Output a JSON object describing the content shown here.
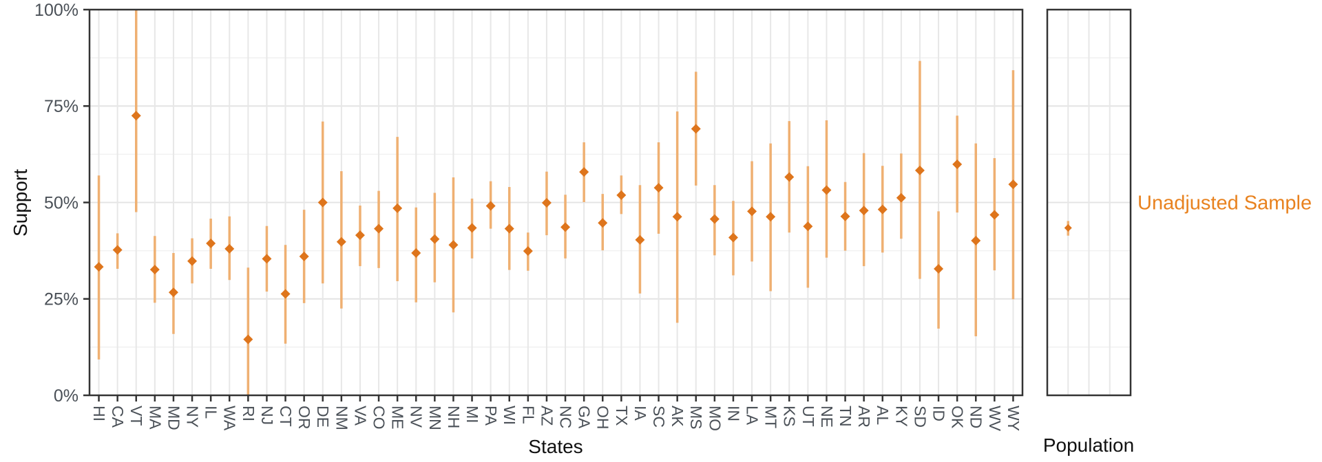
{
  "chart_data": {
    "type": "scatter",
    "title": "",
    "ylabel": "Support",
    "ylim": [
      0,
      100
    ],
    "y_ticks": [
      {
        "v": 0,
        "label": "0%"
      },
      {
        "v": 25,
        "label": "25%"
      },
      {
        "v": 50,
        "label": "50%"
      },
      {
        "v": 75,
        "label": "75%"
      },
      {
        "v": 100,
        "label": "100%"
      }
    ],
    "grid": "horizontal major at 25/50/75 and minor at 12.5 steps; vertical gridline at every category; black panel border",
    "legend": {
      "label": "Unadjusted Sample",
      "position": "right of population panel"
    },
    "panels": [
      {
        "xlabel": "States",
        "columns": [
          "state",
          "support_pct",
          "ci_low_pct",
          "ci_high_pct"
        ],
        "points": [
          [
            "HI",
            33.3,
            9.3,
            57.0
          ],
          [
            "CA",
            37.7,
            32.8,
            42.0
          ],
          [
            "VT",
            72.5,
            47.5,
            100.0
          ],
          [
            "MA",
            32.6,
            24.0,
            41.3
          ],
          [
            "MD",
            26.7,
            15.9,
            36.9
          ],
          [
            "NY",
            34.8,
            29.0,
            40.7
          ],
          [
            "IL",
            39.4,
            32.8,
            45.8
          ],
          [
            "WA",
            38.0,
            29.9,
            46.4
          ],
          [
            "RI",
            14.5,
            0.0,
            33.1
          ],
          [
            "NJ",
            35.4,
            26.9,
            43.9
          ],
          [
            "CT",
            26.3,
            13.4,
            39.0
          ],
          [
            "OR",
            36.0,
            23.9,
            48.1
          ],
          [
            "DE",
            50.0,
            29.0,
            71.0
          ],
          [
            "NM",
            39.8,
            22.5,
            58.1
          ],
          [
            "VA",
            41.5,
            33.5,
            49.2
          ],
          [
            "CO",
            43.2,
            33.0,
            53.0
          ],
          [
            "ME",
            48.5,
            29.6,
            67.0
          ],
          [
            "NV",
            36.9,
            24.1,
            48.7
          ],
          [
            "MN",
            40.5,
            29.3,
            52.5
          ],
          [
            "NH",
            39.0,
            21.5,
            56.5
          ],
          [
            "MI",
            43.4,
            35.5,
            51.0
          ],
          [
            "PA",
            49.1,
            43.2,
            55.5
          ],
          [
            "WI",
            43.2,
            32.5,
            54.0
          ],
          [
            "FL",
            37.4,
            32.3,
            42.2
          ],
          [
            "AZ",
            49.9,
            41.5,
            58.0
          ],
          [
            "NC",
            43.6,
            35.5,
            52.0
          ],
          [
            "GA",
            57.9,
            50.1,
            65.6
          ],
          [
            "OH",
            44.7,
            37.6,
            52.2
          ],
          [
            "TX",
            51.9,
            47.0,
            57.0
          ],
          [
            "IA",
            40.3,
            26.4,
            54.5
          ],
          [
            "SC",
            53.8,
            41.9,
            65.6
          ],
          [
            "AK",
            46.3,
            18.8,
            73.6
          ],
          [
            "MS",
            69.1,
            54.4,
            83.9
          ],
          [
            "MO",
            45.7,
            36.3,
            54.5
          ],
          [
            "IN",
            40.9,
            31.1,
            50.4
          ],
          [
            "LA",
            47.7,
            34.7,
            60.7
          ],
          [
            "MT",
            46.3,
            27.0,
            65.3
          ],
          [
            "KS",
            56.6,
            42.2,
            71.1
          ],
          [
            "UT",
            43.8,
            27.9,
            59.4
          ],
          [
            "NE",
            53.2,
            35.7,
            71.3
          ],
          [
            "TN",
            46.4,
            37.5,
            55.3
          ],
          [
            "AR",
            47.9,
            33.5,
            62.8
          ],
          [
            "AL",
            48.2,
            37.0,
            59.5
          ],
          [
            "KY",
            51.2,
            40.6,
            62.7
          ],
          [
            "SD",
            58.3,
            30.2,
            86.7
          ],
          [
            "ID",
            32.8,
            17.3,
            47.7
          ],
          [
            "OK",
            59.9,
            47.4,
            72.5
          ],
          [
            "ND",
            40.1,
            15.3,
            65.3
          ],
          [
            "WV",
            46.8,
            32.4,
            61.5
          ],
          [
            "WY",
            54.7,
            24.9,
            84.3
          ]
        ]
      },
      {
        "xlabel": "Population",
        "columns": [
          "group",
          "support_pct",
          "ci_low_pct",
          "ci_high_pct"
        ],
        "points": [
          [
            "Unadjusted Sample",
            43.4,
            41.4,
            45.2
          ]
        ]
      }
    ],
    "colors": {
      "point": "#DE751C",
      "interval": "#EFB072",
      "legend_text": "#E8821F",
      "grid_major": "#E4E4E4",
      "grid_minor": "#F1F1F1",
      "grid_vertical": "#E7E7E7",
      "panel_border": "#333333",
      "tick": "#333333",
      "axis_text": "#4A5057",
      "title_text": "#111111"
    }
  }
}
